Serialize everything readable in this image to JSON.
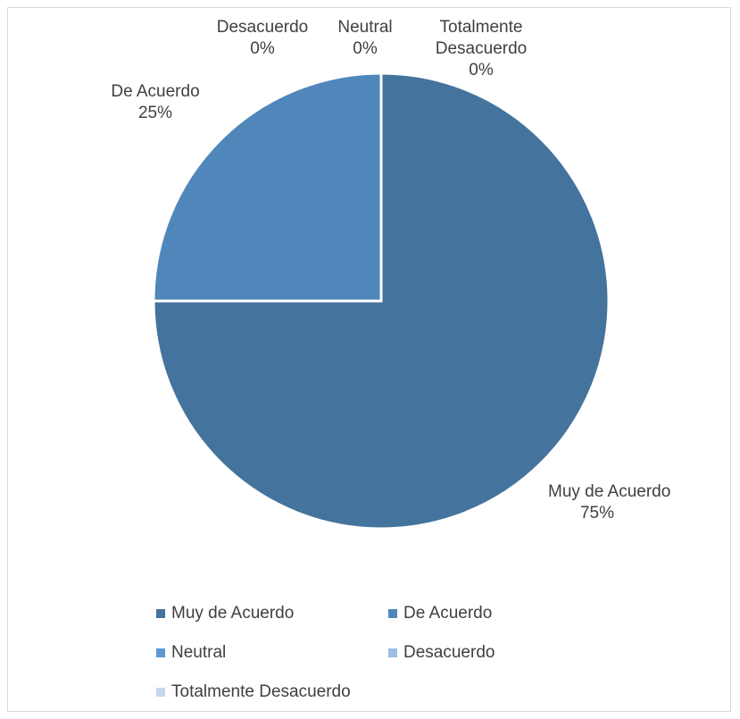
{
  "chart_data": {
    "type": "pie",
    "title": "",
    "slices": [
      {
        "label": "Muy de Acuerdo",
        "value": 75,
        "value_label": "75%",
        "color": "#44739d"
      },
      {
        "label": "De Acuerdo",
        "value": 25,
        "value_label": "25%",
        "color": "#4f87bb"
      },
      {
        "label": "Neutral",
        "value": 0,
        "value_label": "0%",
        "color": "#5b99d4"
      },
      {
        "label": "Desacuerdo",
        "value": 0,
        "value_label": "0%",
        "color": "#9cbce3"
      },
      {
        "label": "Totalmente Desacuerdo",
        "value": 0,
        "value_label": "0%",
        "color": "#c5d6ee"
      }
    ],
    "legend_position": "bottom"
  }
}
